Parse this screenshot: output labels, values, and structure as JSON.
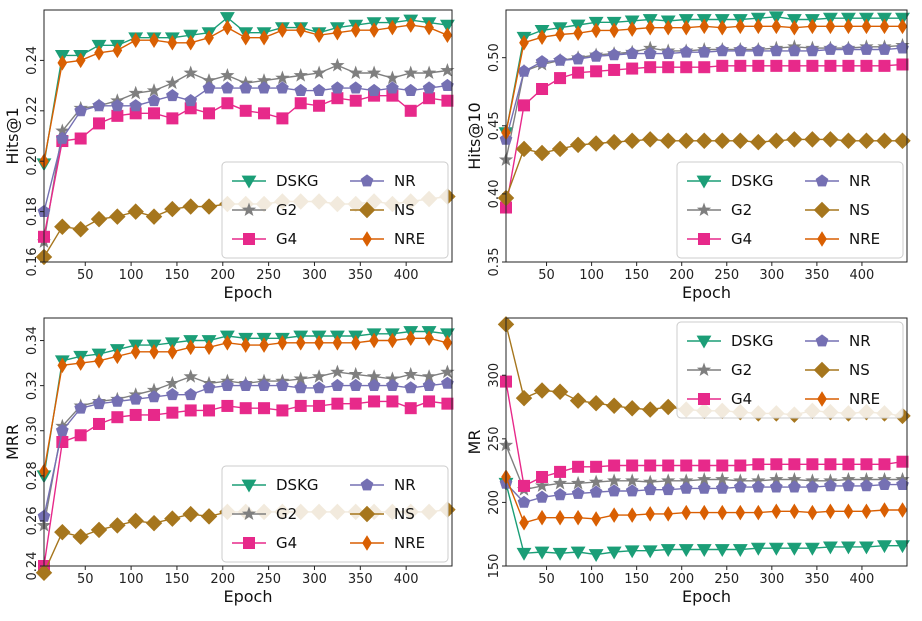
{
  "chart_data": [
    {
      "type": "line",
      "xlabel": "Epoch",
      "ylabel": "Hits@1",
      "xlim": [
        5,
        450
      ],
      "ylim": [
        0.16,
        0.26
      ],
      "xticks": [
        50,
        100,
        150,
        200,
        250,
        300,
        350,
        400
      ],
      "yticks": [
        0.16,
        0.18,
        0.2,
        0.22,
        0.24
      ],
      "ytick_labels": [
        "0.16",
        "0.18",
        "0.20",
        "0.22",
        "0.24"
      ],
      "grid": false,
      "legend": {
        "position": "lower-right",
        "columns": 2
      },
      "x": [
        5,
        25,
        45,
        65,
        85,
        105,
        125,
        145,
        165,
        185,
        205,
        225,
        245,
        265,
        285,
        305,
        325,
        345,
        365,
        385,
        405,
        425,
        445
      ],
      "series": [
        {
          "name": "DSKG",
          "values": [
            0.199,
            0.242,
            0.242,
            0.246,
            0.246,
            0.249,
            0.249,
            0.249,
            0.25,
            0.251,
            0.257,
            0.251,
            0.251,
            0.253,
            0.253,
            0.251,
            0.253,
            0.254,
            0.255,
            0.255,
            0.256,
            0.255,
            0.254
          ]
        },
        {
          "name": "G2",
          "values": [
            0.168,
            0.212,
            0.221,
            0.222,
            0.224,
            0.227,
            0.228,
            0.231,
            0.235,
            0.232,
            0.234,
            0.231,
            0.232,
            0.233,
            0.234,
            0.235,
            0.238,
            0.235,
            0.235,
            0.233,
            0.235,
            0.235,
            0.236
          ]
        },
        {
          "name": "G4",
          "values": [
            0.17,
            0.208,
            0.209,
            0.215,
            0.218,
            0.219,
            0.219,
            0.217,
            0.221,
            0.219,
            0.223,
            0.22,
            0.219,
            0.217,
            0.223,
            0.222,
            0.225,
            0.224,
            0.226,
            0.226,
            0.22,
            0.225,
            0.224
          ]
        },
        {
          "name": "NR",
          "values": [
            0.18,
            0.209,
            0.22,
            0.222,
            0.222,
            0.222,
            0.224,
            0.226,
            0.224,
            0.229,
            0.229,
            0.229,
            0.229,
            0.229,
            0.228,
            0.228,
            0.229,
            0.229,
            0.228,
            0.229,
            0.228,
            0.229,
            0.23
          ]
        },
        {
          "name": "NS",
          "values": [
            0.162,
            0.174,
            0.173,
            0.177,
            0.178,
            0.18,
            0.178,
            0.181,
            0.182,
            0.182,
            0.183,
            0.183,
            0.183,
            0.184,
            0.184,
            0.184,
            0.183,
            0.183,
            0.184,
            0.183,
            0.184,
            0.185,
            0.186
          ]
        },
        {
          "name": "NRE",
          "values": [
            0.2,
            0.239,
            0.24,
            0.243,
            0.244,
            0.248,
            0.248,
            0.247,
            0.247,
            0.249,
            0.253,
            0.249,
            0.249,
            0.252,
            0.252,
            0.25,
            0.251,
            0.252,
            0.252,
            0.253,
            0.254,
            0.253,
            0.25
          ]
        }
      ]
    },
    {
      "type": "line",
      "xlabel": "Epoch",
      "ylabel": "Hits@10",
      "xlim": [
        5,
        450
      ],
      "ylim": [
        0.35,
        0.535
      ],
      "xticks": [
        50,
        100,
        150,
        200,
        250,
        300,
        350,
        400
      ],
      "yticks": [
        0.35,
        0.4,
        0.45,
        0.5
      ],
      "ytick_labels": [
        "0.35",
        "0.40",
        "0.45",
        "0.50"
      ],
      "grid": false,
      "legend": {
        "position": "lower-right",
        "columns": 2
      },
      "x": [
        5,
        25,
        45,
        65,
        85,
        105,
        125,
        145,
        165,
        185,
        205,
        225,
        245,
        265,
        285,
        305,
        325,
        345,
        365,
        385,
        405,
        425,
        445
      ],
      "series": [
        {
          "name": "DSKG",
          "values": [
            0.445,
            0.515,
            0.52,
            0.522,
            0.524,
            0.526,
            0.526,
            0.527,
            0.528,
            0.527,
            0.528,
            0.528,
            0.528,
            0.528,
            0.529,
            0.53,
            0.528,
            0.528,
            0.529,
            0.529,
            0.529,
            0.529,
            0.529
          ]
        },
        {
          "name": "G2",
          "values": [
            0.425,
            0.49,
            0.495,
            0.498,
            0.5,
            0.502,
            0.503,
            0.504,
            0.507,
            0.505,
            0.505,
            0.506,
            0.506,
            0.506,
            0.506,
            0.507,
            0.508,
            0.507,
            0.507,
            0.507,
            0.508,
            0.508,
            0.509
          ]
        },
        {
          "name": "G4",
          "values": [
            0.39,
            0.465,
            0.477,
            0.485,
            0.489,
            0.49,
            0.491,
            0.492,
            0.493,
            0.493,
            0.493,
            0.493,
            0.494,
            0.494,
            0.494,
            0.494,
            0.494,
            0.494,
            0.494,
            0.494,
            0.494,
            0.494,
            0.495
          ]
        },
        {
          "name": "NR",
          "values": [
            0.44,
            0.49,
            0.497,
            0.498,
            0.499,
            0.501,
            0.502,
            0.503,
            0.503,
            0.503,
            0.504,
            0.504,
            0.505,
            0.505,
            0.505,
            0.505,
            0.505,
            0.505,
            0.506,
            0.506,
            0.506,
            0.506,
            0.507
          ]
        },
        {
          "name": "NS",
          "values": [
            0.397,
            0.433,
            0.43,
            0.433,
            0.436,
            0.437,
            0.438,
            0.439,
            0.44,
            0.439,
            0.439,
            0.439,
            0.439,
            0.439,
            0.438,
            0.439,
            0.44,
            0.44,
            0.44,
            0.439,
            0.439,
            0.439,
            0.439
          ]
        },
        {
          "name": "NRE",
          "values": [
            0.445,
            0.511,
            0.515,
            0.517,
            0.518,
            0.52,
            0.52,
            0.521,
            0.522,
            0.522,
            0.522,
            0.523,
            0.522,
            0.523,
            0.523,
            0.523,
            0.522,
            0.523,
            0.523,
            0.523,
            0.523,
            0.523,
            0.523
          ]
        }
      ]
    },
    {
      "type": "line",
      "xlabel": "Epoch",
      "ylabel": "MRR",
      "xlim": [
        5,
        450
      ],
      "ylim": [
        0.24,
        0.35
      ],
      "xticks": [
        50,
        100,
        150,
        200,
        250,
        300,
        350,
        400
      ],
      "yticks": [
        0.24,
        0.26,
        0.28,
        0.3,
        0.32,
        0.34
      ],
      "ytick_labels": [
        "0.24",
        "0.26",
        "0.28",
        "0.30",
        "0.32",
        "0.34"
      ],
      "grid": false,
      "legend": {
        "position": "lower-right",
        "columns": 2
      },
      "x": [
        5,
        25,
        45,
        65,
        85,
        105,
        125,
        145,
        165,
        185,
        205,
        225,
        245,
        265,
        285,
        305,
        325,
        345,
        365,
        385,
        405,
        425,
        445
      ],
      "series": [
        {
          "name": "DSKG",
          "values": [
            0.28,
            0.331,
            0.333,
            0.334,
            0.336,
            0.338,
            0.338,
            0.339,
            0.34,
            0.34,
            0.342,
            0.341,
            0.341,
            0.341,
            0.342,
            0.342,
            0.342,
            0.342,
            0.343,
            0.343,
            0.344,
            0.344,
            0.343
          ]
        },
        {
          "name": "G2",
          "values": [
            0.258,
            0.302,
            0.311,
            0.313,
            0.314,
            0.316,
            0.318,
            0.321,
            0.324,
            0.321,
            0.322,
            0.321,
            0.322,
            0.322,
            0.323,
            0.324,
            0.326,
            0.325,
            0.324,
            0.323,
            0.325,
            0.324,
            0.326
          ]
        },
        {
          "name": "G4",
          "values": [
            0.24,
            0.295,
            0.298,
            0.303,
            0.306,
            0.307,
            0.307,
            0.308,
            0.309,
            0.309,
            0.311,
            0.31,
            0.31,
            0.309,
            0.311,
            0.311,
            0.312,
            0.312,
            0.313,
            0.313,
            0.31,
            0.313,
            0.312
          ]
        },
        {
          "name": "NR",
          "values": [
            0.262,
            0.3,
            0.31,
            0.312,
            0.313,
            0.314,
            0.315,
            0.316,
            0.316,
            0.319,
            0.32,
            0.32,
            0.32,
            0.32,
            0.319,
            0.319,
            0.32,
            0.32,
            0.32,
            0.32,
            0.319,
            0.32,
            0.321
          ]
        },
        {
          "name": "NS",
          "values": [
            0.237,
            0.255,
            0.253,
            0.256,
            0.258,
            0.26,
            0.259,
            0.261,
            0.263,
            0.262,
            0.264,
            0.264,
            0.264,
            0.264,
            0.264,
            0.264,
            0.264,
            0.264,
            0.264,
            0.264,
            0.264,
            0.264,
            0.265
          ]
        },
        {
          "name": "NRE",
          "values": [
            0.282,
            0.329,
            0.33,
            0.331,
            0.333,
            0.335,
            0.335,
            0.335,
            0.337,
            0.337,
            0.339,
            0.338,
            0.338,
            0.339,
            0.339,
            0.339,
            0.339,
            0.339,
            0.34,
            0.34,
            0.341,
            0.341,
            0.339
          ]
        }
      ]
    },
    {
      "type": "line",
      "xlabel": "Epoch",
      "ylabel": "MR",
      "xlim": [
        5,
        450
      ],
      "ylim": [
        150,
        345
      ],
      "xticks": [
        50,
        100,
        150,
        200,
        250,
        300,
        350,
        400
      ],
      "yticks": [
        150,
        200,
        250,
        300
      ],
      "ytick_labels": [
        "150",
        "200",
        "250",
        "300"
      ],
      "grid": false,
      "legend": {
        "position": "upper-right",
        "columns": 2
      },
      "x": [
        5,
        25,
        45,
        65,
        85,
        105,
        125,
        145,
        165,
        185,
        205,
        225,
        245,
        265,
        285,
        305,
        325,
        345,
        365,
        385,
        405,
        425,
        445
      ],
      "series": [
        {
          "name": "DSKG",
          "values": [
            215,
            160,
            161,
            160,
            161,
            159,
            161,
            162,
            162,
            163,
            163,
            163,
            163,
            163,
            164,
            164,
            164,
            164,
            165,
            165,
            165,
            166,
            166
          ]
        },
        {
          "name": "G2",
          "values": [
            245,
            210,
            213,
            215,
            215,
            216,
            217,
            217,
            216,
            217,
            217,
            218,
            218,
            217,
            217,
            218,
            218,
            217,
            217,
            218,
            218,
            218,
            218
          ]
        },
        {
          "name": "G4",
          "values": [
            295,
            213,
            220,
            224,
            228,
            228,
            229,
            229,
            229,
            229,
            229,
            229,
            229,
            229,
            230,
            230,
            230,
            230,
            230,
            230,
            230,
            230,
            232
          ]
        },
        {
          "name": "NR",
          "values": [
            215,
            200,
            204,
            206,
            207,
            208,
            209,
            209,
            210,
            210,
            211,
            211,
            211,
            212,
            212,
            212,
            212,
            212,
            213,
            213,
            213,
            214,
            214
          ]
        },
        {
          "name": "NS",
          "values": [
            340,
            282,
            288,
            287,
            280,
            278,
            276,
            274,
            273,
            275,
            273,
            272,
            272,
            271,
            270,
            270,
            269,
            272,
            271,
            270,
            271,
            270,
            268
          ]
        },
        {
          "name": "NRE",
          "values": [
            220,
            184,
            188,
            188,
            188,
            187,
            190,
            190,
            191,
            191,
            192,
            192,
            192,
            192,
            192,
            193,
            193,
            192,
            193,
            193,
            193,
            194,
            194
          ]
        }
      ]
    }
  ],
  "styles": {
    "DSKG": {
      "color": "#1b9e77",
      "marker": "triangle-down"
    },
    "G2": {
      "color": "#7f7f7f",
      "marker": "star"
    },
    "G4": {
      "color": "#e7298a",
      "marker": "square"
    },
    "NR": {
      "color": "#7570b3",
      "marker": "pentagon"
    },
    "NS": {
      "color": "#a6761d",
      "marker": "diamond"
    },
    "NRE": {
      "color": "#d95f02",
      "marker": "thin-diamond"
    }
  }
}
